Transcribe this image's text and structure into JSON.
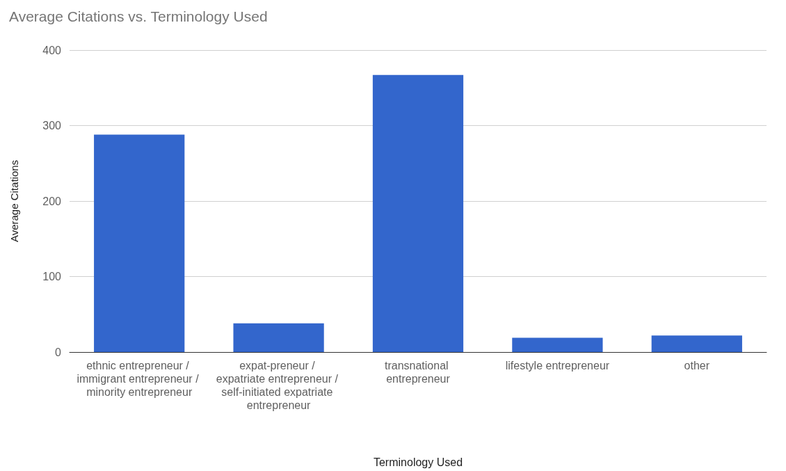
{
  "chart_data": {
    "type": "bar",
    "title": "Average Citations vs. Terminology Used",
    "xlabel": "Terminology Used",
    "ylabel": "Average Citations",
    "categories": [
      "ethnic entrepreneur / immigrant entrepreneur / minority entrepreneur",
      "expat-preneur / expatriate entrepreneur / self-initiated expatriate entrepreneur",
      "transnational entrepreneur",
      "lifestyle entrepreneur",
      "other"
    ],
    "values": [
      288,
      38,
      367,
      19,
      22
    ],
    "color": "#3366cc",
    "ylim": [
      0,
      400
    ],
    "yticks": [
      0,
      100,
      200,
      300,
      400
    ],
    "grid": "y"
  }
}
